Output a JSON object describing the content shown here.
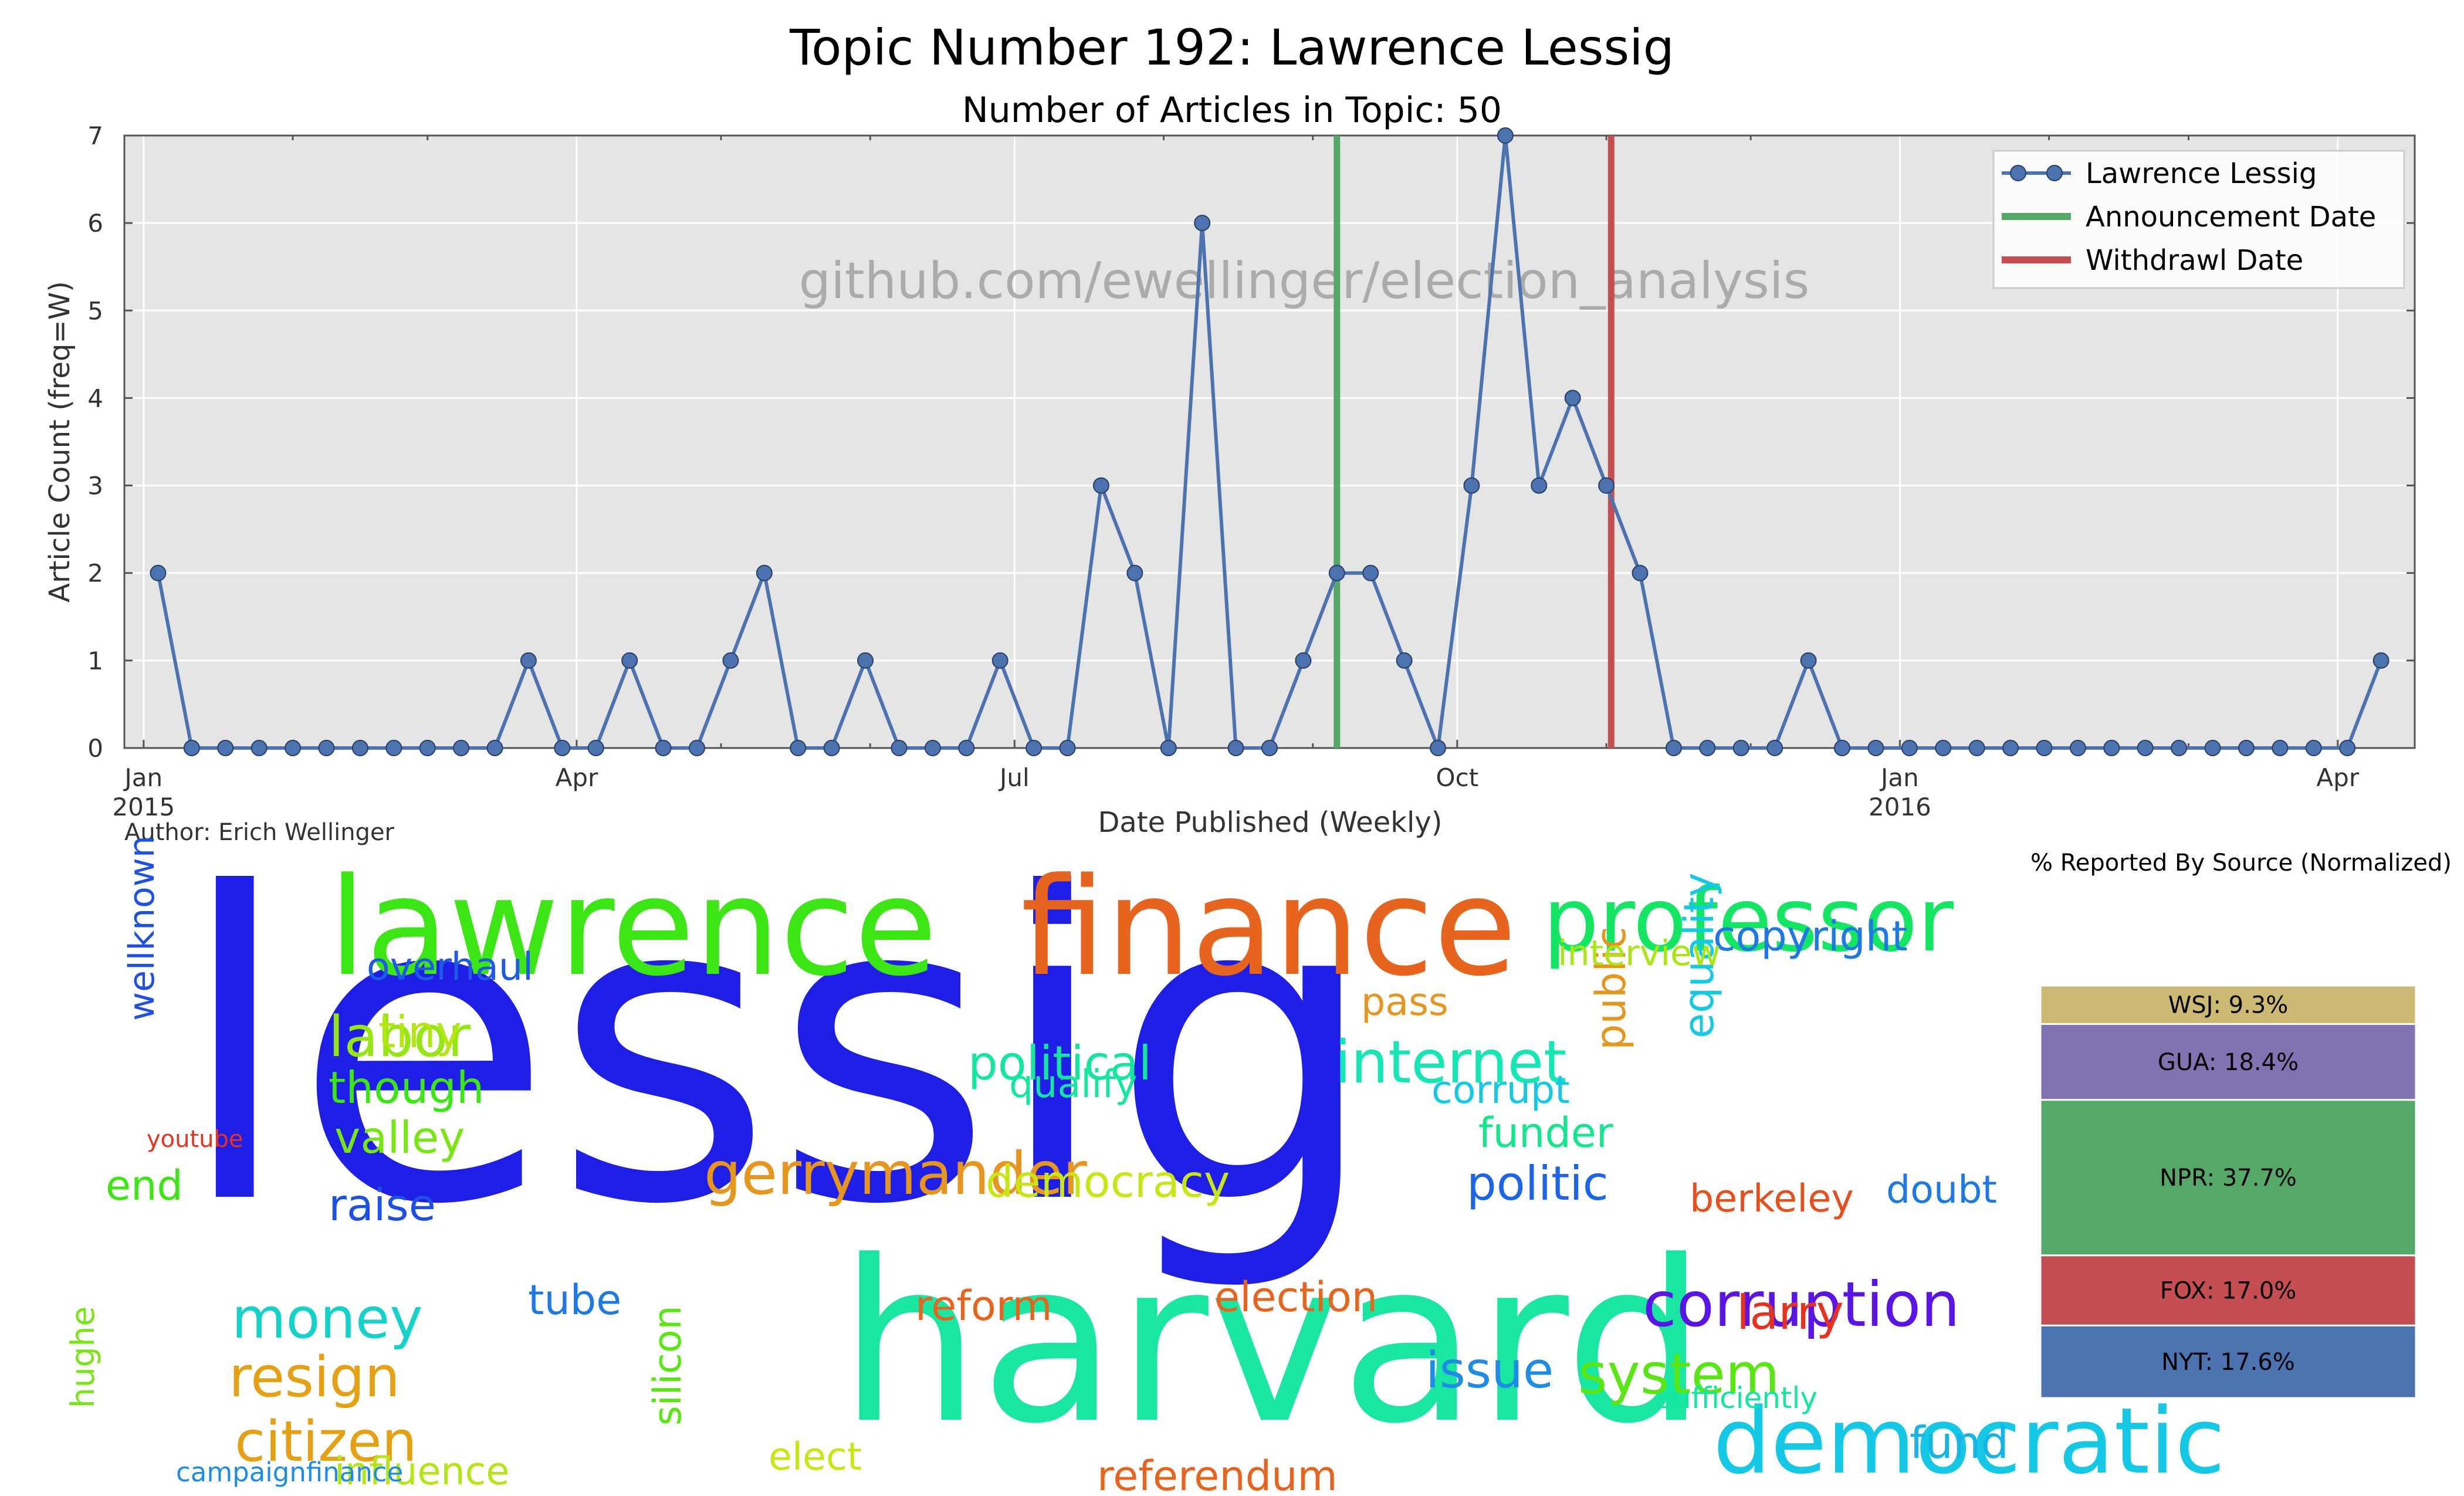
{
  "figure": {
    "title": "Topic Number 192: Lawrence Lessig",
    "subtitle": "Number of Articles in Topic: 50",
    "author": "Author: Erich Wellinger",
    "watermark": "github.com/ewellinger/election_analysis"
  },
  "chart_data": [
    {
      "type": "line",
      "xlabel": "Date Published (Weekly)",
      "ylabel": "Article Count (freq=W)",
      "ylim": [
        0,
        7
      ],
      "xlim": [
        "2014-12-28",
        "2016-04-17"
      ],
      "yticks": [
        0,
        1,
        2,
        3,
        4,
        5,
        6,
        7
      ],
      "xticks": [
        {
          "date": "2015-01-01",
          "label": "Jan",
          "sublabel": "2015"
        },
        {
          "date": "2015-04-01",
          "label": "Apr",
          "sublabel": ""
        },
        {
          "date": "2015-07-01",
          "label": "Jul",
          "sublabel": ""
        },
        {
          "date": "2015-10-01",
          "label": "Oct",
          "sublabel": ""
        },
        {
          "date": "2016-01-01",
          "label": "Jan",
          "sublabel": "2016"
        },
        {
          "date": "2016-04-01",
          "label": "Apr",
          "sublabel": ""
        }
      ],
      "grid": true,
      "legend_position": "top-right",
      "series": [
        {
          "name": "Lawrence Lessig",
          "color": "#4c72b0",
          "x": [
            "2015-01-04",
            "2015-01-11",
            "2015-01-18",
            "2015-01-25",
            "2015-02-01",
            "2015-02-08",
            "2015-02-15",
            "2015-02-22",
            "2015-03-01",
            "2015-03-08",
            "2015-03-15",
            "2015-03-22",
            "2015-03-29",
            "2015-04-05",
            "2015-04-12",
            "2015-04-19",
            "2015-04-26",
            "2015-05-03",
            "2015-05-10",
            "2015-05-17",
            "2015-05-24",
            "2015-05-31",
            "2015-06-07",
            "2015-06-14",
            "2015-06-21",
            "2015-06-28",
            "2015-07-05",
            "2015-07-12",
            "2015-07-19",
            "2015-07-26",
            "2015-08-02",
            "2015-08-09",
            "2015-08-16",
            "2015-08-23",
            "2015-08-30",
            "2015-09-06",
            "2015-09-13",
            "2015-09-20",
            "2015-09-27",
            "2015-10-04",
            "2015-10-11",
            "2015-10-18",
            "2015-10-25",
            "2015-11-01",
            "2015-11-08",
            "2015-11-15",
            "2015-11-22",
            "2015-11-29",
            "2015-12-06",
            "2015-12-13",
            "2015-12-20",
            "2015-12-27",
            "2016-01-03",
            "2016-01-10",
            "2016-01-17",
            "2016-01-24",
            "2016-01-31",
            "2016-02-07",
            "2016-02-14",
            "2016-02-21",
            "2016-02-28",
            "2016-03-06",
            "2016-03-13",
            "2016-03-20",
            "2016-03-27",
            "2016-04-03",
            "2016-04-10"
          ],
          "y": [
            2,
            0,
            0,
            0,
            0,
            0,
            0,
            0,
            0,
            0,
            0,
            1,
            0,
            0,
            1,
            0,
            0,
            1,
            2,
            0,
            0,
            1,
            0,
            0,
            0,
            1,
            0,
            0,
            3,
            2,
            0,
            6,
            0,
            0,
            1,
            2,
            2,
            1,
            0,
            3,
            7,
            3,
            4,
            3,
            2,
            0,
            0,
            0,
            0,
            1,
            0,
            0,
            0,
            0,
            0,
            0,
            0,
            0,
            0,
            0,
            0,
            0,
            0,
            0,
            0,
            0,
            1
          ]
        }
      ],
      "vlines": [
        {
          "name": "Announcement Date",
          "date": "2015-09-06",
          "color": "#55a868"
        },
        {
          "name": "Withdrawl Date",
          "date": "2015-11-02",
          "color": "#c44e52"
        }
      ]
    },
    {
      "type": "bar",
      "title": "% Reported By Source (Normalized)",
      "stacked": true,
      "categories": [
        "NYT",
        "FOX",
        "NPR",
        "GUA",
        "WSJ"
      ],
      "values": [
        17.6,
        17.0,
        37.7,
        18.4,
        9.3
      ],
      "labels": [
        "NYT: 17.6%",
        "FOX: 17.0%",
        "NPR: 37.7%",
        "GUA: 18.4%",
        "WSJ: 9.3%"
      ],
      "colors": [
        "#4c72b0",
        "#c44e52",
        "#55a868",
        "#8172b2",
        "#ccb974"
      ]
    }
  ],
  "wordcloud": [
    {
      "t": "lessig",
      "c": "#1e1ee6"
    },
    {
      "t": "harvard",
      "c": "#19e6a0"
    },
    {
      "t": "lawrence",
      "c": "#3ce614"
    },
    {
      "t": "finance",
      "c": "#e6641e"
    },
    {
      "t": "professor",
      "c": "#14e664"
    },
    {
      "t": "democratic",
      "c": "#14c8e6"
    },
    {
      "t": "corruption",
      "c": "#5a14e6"
    },
    {
      "t": "gerrymander",
      "c": "#e6961e"
    },
    {
      "t": "internet",
      "c": "#14e6b4"
    },
    {
      "t": "money",
      "c": "#14d2c8"
    },
    {
      "t": "system",
      "c": "#5ae614"
    },
    {
      "t": "labor",
      "c": "#96e614"
    },
    {
      "t": "citizen",
      "c": "#e6a014"
    },
    {
      "t": "resign",
      "c": "#e6a014"
    },
    {
      "t": "political",
      "c": "#14e6a0"
    },
    {
      "t": "democracy",
      "c": "#c8e614"
    },
    {
      "t": "politic",
      "c": "#1e64e6"
    },
    {
      "t": "issue",
      "c": "#1e8ce6"
    },
    {
      "t": "copyright",
      "c": "#1e78e6"
    },
    {
      "t": "equality",
      "c": "#14c8e6"
    },
    {
      "t": "overhaul",
      "c": "#1e5ae6"
    },
    {
      "t": "tiny",
      "c": "#b4e614"
    },
    {
      "t": "valley",
      "c": "#78e614"
    },
    {
      "t": "though",
      "c": "#3ce614"
    },
    {
      "t": "raise",
      "c": "#1e50e6"
    },
    {
      "t": "reform",
      "c": "#e6641e"
    },
    {
      "t": "election",
      "c": "#e6641e"
    },
    {
      "t": "larry",
      "c": "#e6321e"
    },
    {
      "t": "influence",
      "c": "#b4e614"
    },
    {
      "t": "elect",
      "c": "#c8e614"
    },
    {
      "t": "referendum",
      "c": "#e6641e"
    },
    {
      "t": "fund",
      "c": "#14b4e6"
    },
    {
      "t": "tube",
      "c": "#1e78e6"
    },
    {
      "t": "silicon",
      "c": "#5ae614"
    },
    {
      "t": "doubt",
      "c": "#1e78e6"
    },
    {
      "t": "berkeley",
      "c": "#e6501e"
    },
    {
      "t": "funder",
      "c": "#14e68c"
    },
    {
      "t": "corrupt",
      "c": "#14c8e6"
    },
    {
      "t": "qualify",
      "c": "#14e6a0"
    },
    {
      "t": "public",
      "c": "#e6961e"
    },
    {
      "t": "pass",
      "c": "#e6961e"
    },
    {
      "t": "interview",
      "c": "#aae614"
    },
    {
      "t": "wellknown",
      "c": "#1e50e6"
    },
    {
      "t": "end",
      "c": "#3ce614"
    },
    {
      "t": "hughe",
      "c": "#78e614"
    },
    {
      "t": "sufficiently",
      "c": "#14e6a0"
    },
    {
      "t": "campaignfinance",
      "c": "#1e8ce6"
    },
    {
      "t": "youtube",
      "c": "#e6321e"
    }
  ]
}
